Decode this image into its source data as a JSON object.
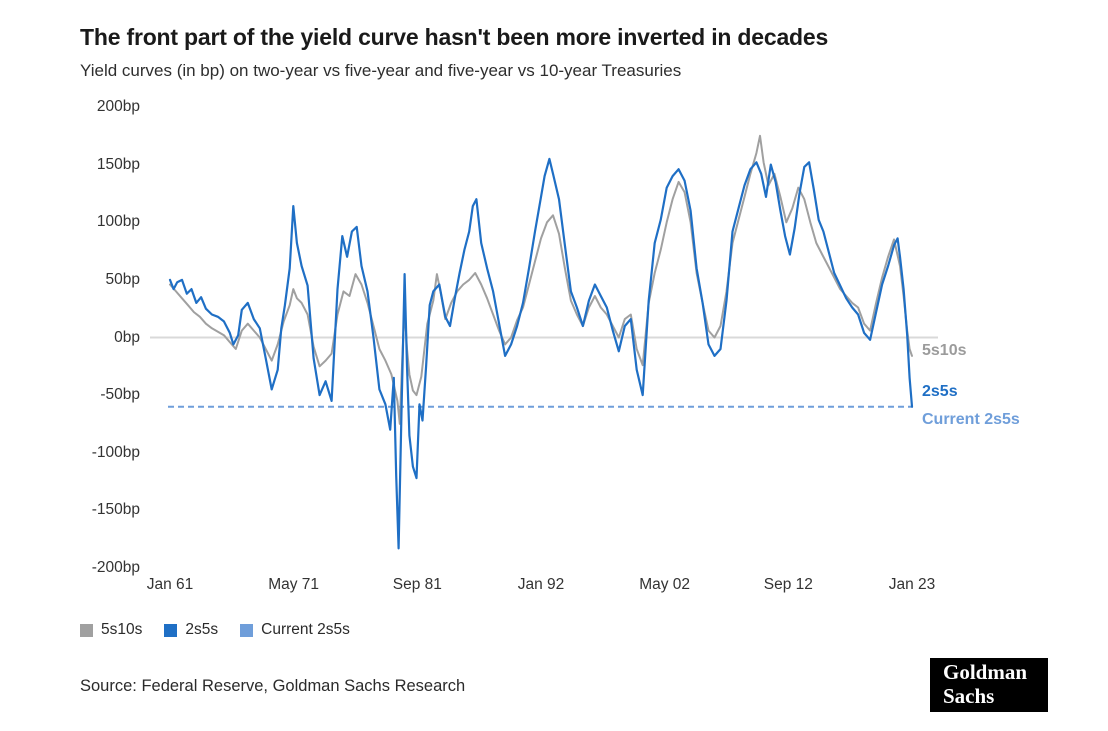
{
  "chart_data": {
    "type": "line",
    "title": "The front part of the yield curve hasn't been more inverted in decades",
    "subtitle": "Yield curves (in bp) on two-year vs five-year and five-year vs 10-year Treasuries",
    "x_axis": {
      "range": [
        1961,
        2023
      ],
      "ticks": [
        {
          "label": "Jan 61",
          "x": 1961
        },
        {
          "label": "May 71",
          "x": 1971.33
        },
        {
          "label": "Sep 81",
          "x": 1981.67
        },
        {
          "label": "Jan 92",
          "x": 1992
        },
        {
          "label": "May 02",
          "x": 2002.33
        },
        {
          "label": "Sep 12",
          "x": 2012.67
        },
        {
          "label": "Jan 23",
          "x": 2023
        }
      ]
    },
    "y_axis": {
      "range": [
        -200,
        200
      ],
      "unit": "bp",
      "ticks": [
        {
          "label": "200bp",
          "v": 200
        },
        {
          "label": "150bp",
          "v": 150
        },
        {
          "label": "100bp",
          "v": 100
        },
        {
          "label": "50bp",
          "v": 50
        },
        {
          "label": "0bp",
          "v": 0
        },
        {
          "label": "-50bp",
          "v": -50
        },
        {
          "label": "-100bp",
          "v": -100
        },
        {
          "label": "-150bp",
          "v": -150
        },
        {
          "label": "-200bp",
          "v": -200
        }
      ]
    },
    "zero_line": {
      "v": 0,
      "color": "#d9d9d9"
    },
    "current_line": {
      "name": "Current 2s5s",
      "v": -60,
      "color": "#6f9eda",
      "style": "dashed"
    },
    "series": [
      {
        "name": "5s10s",
        "color": "#a0a0a0",
        "points": [
          [
            1961.0,
            46
          ],
          [
            1961.5,
            40
          ],
          [
            1962.0,
            34
          ],
          [
            1962.5,
            28
          ],
          [
            1963.0,
            22
          ],
          [
            1963.5,
            18
          ],
          [
            1964.0,
            12
          ],
          [
            1964.5,
            8
          ],
          [
            1965.0,
            5
          ],
          [
            1965.5,
            2
          ],
          [
            1966.0,
            -4
          ],
          [
            1966.5,
            -10
          ],
          [
            1967.0,
            6
          ],
          [
            1967.5,
            12
          ],
          [
            1968.0,
            6
          ],
          [
            1968.5,
            0
          ],
          [
            1969.0,
            -10
          ],
          [
            1969.5,
            -20
          ],
          [
            1970.0,
            -6
          ],
          [
            1970.5,
            14
          ],
          [
            1971.0,
            28
          ],
          [
            1971.3,
            42
          ],
          [
            1971.6,
            34
          ],
          [
            1972.0,
            30
          ],
          [
            1972.5,
            20
          ],
          [
            1973.0,
            -8
          ],
          [
            1973.5,
            -25
          ],
          [
            1974.0,
            -20
          ],
          [
            1974.5,
            -14
          ],
          [
            1975.0,
            20
          ],
          [
            1975.5,
            40
          ],
          [
            1976.0,
            36
          ],
          [
            1976.5,
            55
          ],
          [
            1977.0,
            46
          ],
          [
            1977.5,
            30
          ],
          [
            1978.0,
            10
          ],
          [
            1978.5,
            -10
          ],
          [
            1979.0,
            -20
          ],
          [
            1979.5,
            -32
          ],
          [
            1980.0,
            -55
          ],
          [
            1980.2,
            -75
          ],
          [
            1980.4,
            -20
          ],
          [
            1980.6,
            25
          ],
          [
            1980.8,
            -10
          ],
          [
            1981.0,
            -32
          ],
          [
            1981.3,
            -46
          ],
          [
            1981.6,
            -50
          ],
          [
            1982.0,
            -34
          ],
          [
            1982.5,
            12
          ],
          [
            1983.0,
            32
          ],
          [
            1983.3,
            55
          ],
          [
            1983.6,
            40
          ],
          [
            1984.0,
            16
          ],
          [
            1984.5,
            30
          ],
          [
            1985.0,
            40
          ],
          [
            1985.5,
            46
          ],
          [
            1986.0,
            50
          ],
          [
            1986.5,
            56
          ],
          [
            1987.0,
            46
          ],
          [
            1987.5,
            34
          ],
          [
            1988.0,
            20
          ],
          [
            1988.5,
            6
          ],
          [
            1989.0,
            -6
          ],
          [
            1989.5,
            0
          ],
          [
            1990.0,
            15
          ],
          [
            1990.5,
            26
          ],
          [
            1991.0,
            46
          ],
          [
            1991.5,
            66
          ],
          [
            1992.0,
            86
          ],
          [
            1992.5,
            100
          ],
          [
            1993.0,
            106
          ],
          [
            1993.5,
            90
          ],
          [
            1994.0,
            60
          ],
          [
            1994.5,
            32
          ],
          [
            1995.0,
            20
          ],
          [
            1995.5,
            10
          ],
          [
            1996.0,
            26
          ],
          [
            1996.5,
            36
          ],
          [
            1997.0,
            26
          ],
          [
            1997.5,
            20
          ],
          [
            1998.0,
            10
          ],
          [
            1998.5,
            0
          ],
          [
            1999.0,
            16
          ],
          [
            1999.5,
            20
          ],
          [
            2000.0,
            -10
          ],
          [
            2000.5,
            -24
          ],
          [
            2001.0,
            30
          ],
          [
            2001.5,
            56
          ],
          [
            2002.0,
            76
          ],
          [
            2002.5,
            100
          ],
          [
            2003.0,
            120
          ],
          [
            2003.5,
            135
          ],
          [
            2004.0,
            126
          ],
          [
            2004.5,
            100
          ],
          [
            2005.0,
            56
          ],
          [
            2005.5,
            30
          ],
          [
            2006.0,
            6
          ],
          [
            2006.5,
            0
          ],
          [
            2007.0,
            10
          ],
          [
            2007.5,
            40
          ],
          [
            2008.0,
            82
          ],
          [
            2008.5,
            102
          ],
          [
            2009.0,
            122
          ],
          [
            2009.5,
            142
          ],
          [
            2010.0,
            160
          ],
          [
            2010.3,
            175
          ],
          [
            2010.6,
            152
          ],
          [
            2011.0,
            132
          ],
          [
            2011.5,
            142
          ],
          [
            2012.0,
            122
          ],
          [
            2012.5,
            100
          ],
          [
            2013.0,
            112
          ],
          [
            2013.5,
            130
          ],
          [
            2014.0,
            120
          ],
          [
            2014.5,
            100
          ],
          [
            2015.0,
            82
          ],
          [
            2015.5,
            72
          ],
          [
            2016.0,
            62
          ],
          [
            2016.5,
            52
          ],
          [
            2017.0,
            42
          ],
          [
            2017.5,
            36
          ],
          [
            2018.0,
            30
          ],
          [
            2018.5,
            26
          ],
          [
            2019.0,
            12
          ],
          [
            2019.5,
            6
          ],
          [
            2020.0,
            30
          ],
          [
            2020.5,
            52
          ],
          [
            2021.0,
            70
          ],
          [
            2021.5,
            85
          ],
          [
            2022.0,
            62
          ],
          [
            2022.3,
            36
          ],
          [
            2022.6,
            6
          ],
          [
            2022.8,
            -10
          ],
          [
            2023.0,
            -16
          ]
        ]
      },
      {
        "name": "2s5s",
        "color": "#1f6fc5",
        "points": [
          [
            1961.0,
            50
          ],
          [
            1961.3,
            42
          ],
          [
            1961.6,
            48
          ],
          [
            1962.0,
            50
          ],
          [
            1962.4,
            38
          ],
          [
            1962.8,
            42
          ],
          [
            1963.2,
            30
          ],
          [
            1963.6,
            35
          ],
          [
            1964.0,
            25
          ],
          [
            1964.5,
            20
          ],
          [
            1965.0,
            18
          ],
          [
            1965.5,
            14
          ],
          [
            1966.0,
            4
          ],
          [
            1966.3,
            -6
          ],
          [
            1966.7,
            2
          ],
          [
            1967.0,
            24
          ],
          [
            1967.5,
            30
          ],
          [
            1968.0,
            16
          ],
          [
            1968.5,
            8
          ],
          [
            1969.0,
            -18
          ],
          [
            1969.5,
            -45
          ],
          [
            1970.0,
            -28
          ],
          [
            1970.3,
            8
          ],
          [
            1970.6,
            28
          ],
          [
            1971.0,
            60
          ],
          [
            1971.3,
            114
          ],
          [
            1971.6,
            82
          ],
          [
            1972.0,
            62
          ],
          [
            1972.5,
            45
          ],
          [
            1973.0,
            -18
          ],
          [
            1973.5,
            -50
          ],
          [
            1974.0,
            -38
          ],
          [
            1974.5,
            -55
          ],
          [
            1975.0,
            42
          ],
          [
            1975.4,
            88
          ],
          [
            1975.8,
            70
          ],
          [
            1976.2,
            92
          ],
          [
            1976.6,
            96
          ],
          [
            1977.0,
            62
          ],
          [
            1977.5,
            40
          ],
          [
            1978.0,
            0
          ],
          [
            1978.5,
            -45
          ],
          [
            1979.0,
            -58
          ],
          [
            1979.4,
            -80
          ],
          [
            1979.7,
            -35
          ],
          [
            1979.9,
            -120
          ],
          [
            1980.1,
            -183
          ],
          [
            1980.35,
            -60
          ],
          [
            1980.6,
            55
          ],
          [
            1980.8,
            -25
          ],
          [
            1981.0,
            -85
          ],
          [
            1981.3,
            -112
          ],
          [
            1981.6,
            -122
          ],
          [
            1981.85,
            -58
          ],
          [
            1982.1,
            -72
          ],
          [
            1982.4,
            -25
          ],
          [
            1982.7,
            28
          ],
          [
            1983.0,
            40
          ],
          [
            1983.5,
            46
          ],
          [
            1984.0,
            18
          ],
          [
            1984.4,
            10
          ],
          [
            1984.8,
            34
          ],
          [
            1985.2,
            56
          ],
          [
            1985.6,
            76
          ],
          [
            1986.0,
            92
          ],
          [
            1986.3,
            114
          ],
          [
            1986.6,
            120
          ],
          [
            1987.0,
            82
          ],
          [
            1987.5,
            60
          ],
          [
            1988.0,
            40
          ],
          [
            1988.5,
            12
          ],
          [
            1989.0,
            -16
          ],
          [
            1989.5,
            -6
          ],
          [
            1990.0,
            10
          ],
          [
            1990.5,
            30
          ],
          [
            1991.0,
            60
          ],
          [
            1991.5,
            92
          ],
          [
            1992.0,
            122
          ],
          [
            1992.3,
            140
          ],
          [
            1992.7,
            155
          ],
          [
            1993.0,
            142
          ],
          [
            1993.5,
            120
          ],
          [
            1994.0,
            80
          ],
          [
            1994.5,
            40
          ],
          [
            1995.0,
            26
          ],
          [
            1995.5,
            10
          ],
          [
            1996.0,
            32
          ],
          [
            1996.5,
            46
          ],
          [
            1997.0,
            36
          ],
          [
            1997.5,
            26
          ],
          [
            1998.0,
            6
          ],
          [
            1998.5,
            -12
          ],
          [
            1999.0,
            10
          ],
          [
            1999.5,
            16
          ],
          [
            2000.0,
            -28
          ],
          [
            2000.5,
            -50
          ],
          [
            2001.0,
            32
          ],
          [
            2001.5,
            82
          ],
          [
            2002.0,
            102
          ],
          [
            2002.5,
            130
          ],
          [
            2003.0,
            140
          ],
          [
            2003.5,
            146
          ],
          [
            2004.0,
            136
          ],
          [
            2004.5,
            110
          ],
          [
            2005.0,
            60
          ],
          [
            2005.5,
            30
          ],
          [
            2006.0,
            -6
          ],
          [
            2006.5,
            -16
          ],
          [
            2007.0,
            -10
          ],
          [
            2007.5,
            32
          ],
          [
            2008.0,
            92
          ],
          [
            2008.5,
            112
          ],
          [
            2009.0,
            132
          ],
          [
            2009.5,
            146
          ],
          [
            2010.0,
            152
          ],
          [
            2010.4,
            142
          ],
          [
            2010.8,
            122
          ],
          [
            2011.2,
            150
          ],
          [
            2011.6,
            135
          ],
          [
            2012.0,
            110
          ],
          [
            2012.4,
            88
          ],
          [
            2012.8,
            72
          ],
          [
            2013.2,
            95
          ],
          [
            2013.6,
            125
          ],
          [
            2014.0,
            148
          ],
          [
            2014.4,
            152
          ],
          [
            2014.8,
            128
          ],
          [
            2015.2,
            102
          ],
          [
            2015.6,
            92
          ],
          [
            2016.0,
            76
          ],
          [
            2016.5,
            56
          ],
          [
            2017.0,
            45
          ],
          [
            2017.5,
            34
          ],
          [
            2018.0,
            26
          ],
          [
            2018.5,
            20
          ],
          [
            2019.0,
            4
          ],
          [
            2019.5,
            -2
          ],
          [
            2020.0,
            22
          ],
          [
            2020.5,
            46
          ],
          [
            2021.0,
            62
          ],
          [
            2021.5,
            80
          ],
          [
            2021.8,
            86
          ],
          [
            2022.0,
            70
          ],
          [
            2022.3,
            42
          ],
          [
            2022.6,
            2
          ],
          [
            2022.8,
            -35
          ],
          [
            2023.0,
            -60
          ]
        ]
      }
    ],
    "annotations": [
      {
        "label": "5s10s",
        "color": "#9b9b9b",
        "v": -12
      },
      {
        "label": "2s5s",
        "color": "#1f6fc5",
        "v": -47
      },
      {
        "label": "Current 2s5s",
        "color": "#6f9eda",
        "v": -72
      }
    ],
    "legend": [
      {
        "label": "5s10s",
        "color": "#a0a0a0"
      },
      {
        "label": "2s5s",
        "color": "#1f6fc5"
      },
      {
        "label": "Current 2s5s",
        "color": "#6f9eda"
      }
    ]
  },
  "footer": {
    "source": "Source: Federal Reserve, Goldman Sachs Research",
    "logo": {
      "line1": "Goldman",
      "line2": "Sachs"
    }
  }
}
